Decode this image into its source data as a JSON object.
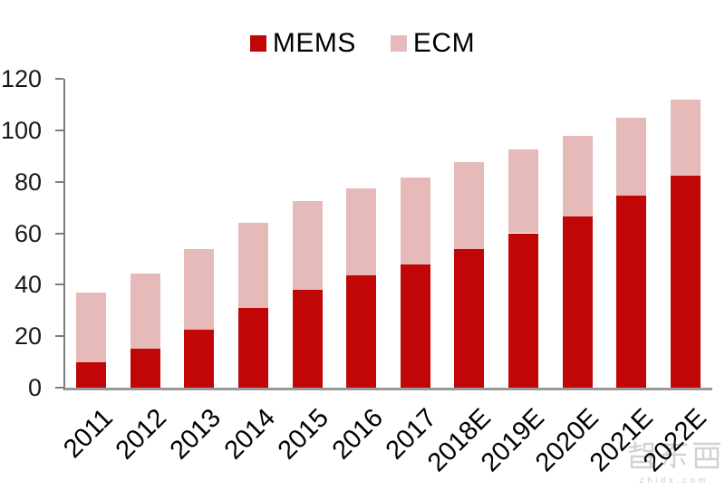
{
  "page": {
    "background": "#ffffff"
  },
  "legend": {
    "items": [
      {
        "label": "MEMS",
        "color": "#C00606"
      },
      {
        "label": "ECM",
        "color": "#E7BABA"
      }
    ]
  },
  "chart_data": {
    "type": "bar",
    "stacked": true,
    "title": "",
    "xlabel": "",
    "ylabel": "",
    "categories": [
      "2011",
      "2012",
      "2013",
      "2014",
      "2015",
      "2016",
      "2017",
      "2018E",
      "2019E",
      "2020E",
      "2021E",
      "2022E"
    ],
    "series": [
      {
        "name": "MEMS",
        "color": "#C00606",
        "values": [
          10,
          15,
          22.5,
          31,
          38,
          43.5,
          48,
          54,
          60,
          66.5,
          74.5,
          82.5
        ]
      },
      {
        "name": "ECM",
        "color": "#E7BABA",
        "values": [
          27,
          29.5,
          31.5,
          33,
          34.5,
          34,
          33.5,
          33.5,
          32.5,
          31.5,
          30.5,
          29.5
        ]
      }
    ],
    "ylim": [
      0,
      120
    ],
    "yticks": [
      0,
      20,
      40,
      60,
      80,
      100,
      120
    ],
    "grid": false,
    "legend_position": "top-center",
    "axis_color": "#7d7d7d",
    "tick_label_color": "#1a1a1a"
  },
  "watermark": {
    "brand": "智东西",
    "site": "zhidx.com"
  }
}
